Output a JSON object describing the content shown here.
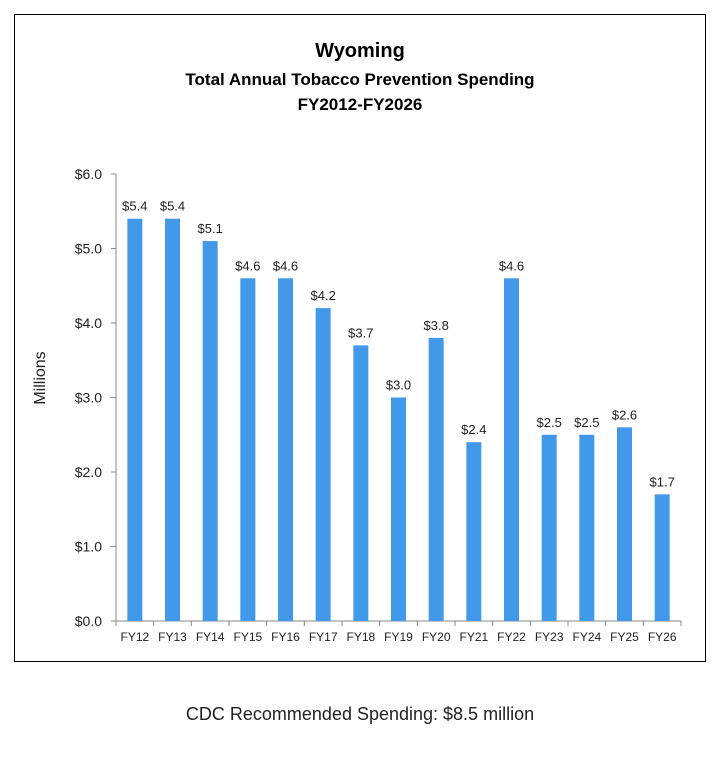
{
  "chart_data": {
    "type": "bar",
    "title": "Wyoming",
    "subtitle": [
      "Total Annual Tobacco Prevention Spending",
      "FY2012-FY2026"
    ],
    "xlabel": "",
    "ylabel": "Millions",
    "ylim": [
      0,
      6
    ],
    "yticks": [
      "$0.0",
      "$1.0",
      "$2.0",
      "$3.0",
      "$4.0",
      "$5.0",
      "$6.0"
    ],
    "categories": [
      "FY12",
      "FY13",
      "FY14",
      "FY15",
      "FY16",
      "FY17",
      "FY18",
      "FY19",
      "FY20",
      "FY21",
      "FY22",
      "FY23",
      "FY24",
      "FY25",
      "FY26"
    ],
    "values": [
      5.4,
      5.4,
      5.1,
      4.6,
      4.6,
      4.2,
      3.7,
      3.0,
      3.8,
      2.4,
      4.6,
      2.5,
      2.5,
      2.6,
      1.7
    ],
    "data_labels": [
      "$5.4",
      "$5.4",
      "$5.1",
      "$4.6",
      "$4.6",
      "$4.2",
      "$3.7",
      "$3.0",
      "$3.8",
      "$2.4",
      "$4.6",
      "$2.5",
      "$2.5",
      "$2.6",
      "$1.7"
    ],
    "bar_color": "#4299E9",
    "grid": false,
    "legend": "none"
  },
  "footer": {
    "note": "CDC Recommended Spending: $8.5 million"
  }
}
